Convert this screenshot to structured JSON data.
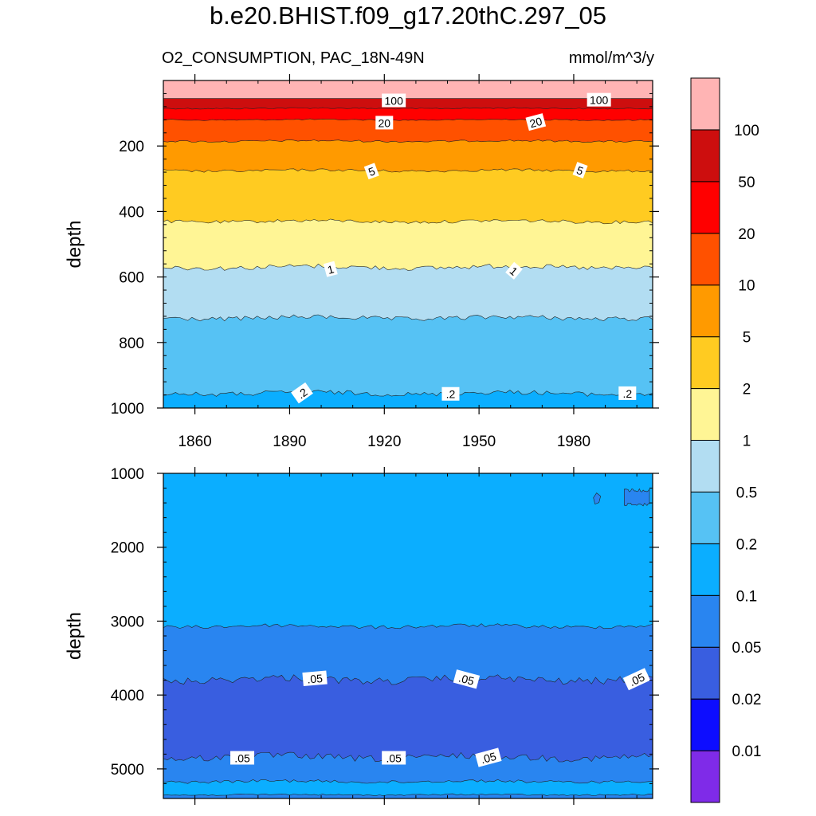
{
  "title": "b.e20.BHIST.f09_g17.20thC.297_05",
  "left_subtitle": "O2_CONSUMPTION, PAC_18N-49N",
  "right_subtitle": "mmol/m^3/y",
  "chart_data": {
    "type": "contour",
    "variable": "O2_CONSUMPTION",
    "region": "PAC_18N-49N",
    "units": "mmol/m^3/y",
    "x": {
      "label": "",
      "range": [
        1850,
        2005
      ],
      "ticks": [
        1860,
        1890,
        1920,
        1950,
        1980
      ],
      "minor_step": 10
    },
    "palette": [
      "#7F2BE8",
      "#0D0DFF",
      "#395EE0",
      "#2985F0",
      "#0BAEFF",
      "#56C2F4",
      "#B2DDF2",
      "#FFF595",
      "#FFCB21",
      "#FF9A00",
      "#FF5100",
      "#FF0000",
      "#CD0E0E",
      "#FFB4B4"
    ],
    "colorbar": {
      "levels": [
        "0.01",
        "0.02",
        "0.05",
        "0.1",
        "0.2",
        "0.5",
        "1",
        "2",
        "5",
        "10",
        "20",
        "50",
        "100"
      ]
    },
    "panels": [
      {
        "name": "upper",
        "ylabel": "depth",
        "ylim": [
          0,
          1000
        ],
        "yreversed": true,
        "y_ticks": [
          200,
          400,
          600,
          800,
          1000
        ],
        "y_minor_step": 40,
        "bands": [
          {
            "top": 0,
            "bottom": 55,
            "color_index": 13,
            "amp": 0
          },
          {
            "top": 55,
            "bottom": 85,
            "color_index": 12,
            "amp": 2
          },
          {
            "top": 85,
            "bottom": 120,
            "color_index": 11,
            "amp": 2
          },
          {
            "top": 120,
            "bottom": 185,
            "color_index": 10,
            "amp": 3
          },
          {
            "top": 185,
            "bottom": 275,
            "color_index": 9,
            "amp": 4
          },
          {
            "top": 275,
            "bottom": 430,
            "color_index": 8,
            "amp": 5
          },
          {
            "top": 430,
            "bottom": 570,
            "color_index": 7,
            "amp": 7
          },
          {
            "top": 570,
            "bottom": 725,
            "color_index": 6,
            "amp": 7
          },
          {
            "top": 725,
            "bottom": 955,
            "color_index": 5,
            "amp": 7
          },
          {
            "top": 955,
            "bottom": 1000,
            "color_index": 4,
            "amp": 0
          }
        ],
        "contour_labels": [
          {
            "text": "100",
            "year": 1923,
            "depth": 62,
            "rot": 0
          },
          {
            "text": "100",
            "year": 1988,
            "depth": 60,
            "rot": 0
          },
          {
            "text": "20",
            "year": 1920,
            "depth": 130,
            "rot": 0
          },
          {
            "text": "20",
            "year": 1968,
            "depth": 128,
            "rot": -15
          },
          {
            "text": "5",
            "year": 1916,
            "depth": 278,
            "rot": -20
          },
          {
            "text": "5",
            "year": 1982,
            "depth": 275,
            "rot": 20
          },
          {
            "text": "1",
            "year": 1903,
            "depth": 577,
            "rot": -15
          },
          {
            "text": "1",
            "year": 1961,
            "depth": 582,
            "rot": 40
          },
          {
            "text": ".2",
            "year": 1894,
            "depth": 955,
            "rot": -35
          },
          {
            "text": ".2",
            "year": 1941,
            "depth": 958,
            "rot": 0
          },
          {
            "text": ".2",
            "year": 1997,
            "depth": 956,
            "rot": 0
          }
        ]
      },
      {
        "name": "lower",
        "ylabel": "depth",
        "ylim": [
          1000,
          5400
        ],
        "yreversed": true,
        "y_ticks": [
          1000,
          2000,
          3000,
          4000,
          5000
        ],
        "y_minor_step": 200,
        "bands": [
          {
            "top": 1000,
            "bottom": 3070,
            "color_index": 4,
            "amp": 25
          },
          {
            "top": 3070,
            "bottom": 3790,
            "color_index": 3,
            "amp": 50
          },
          {
            "top": 3790,
            "bottom": 4840,
            "color_index": 2,
            "amp": 45
          },
          {
            "top": 4840,
            "bottom": 5170,
            "color_index": 3,
            "amp": 20
          },
          {
            "top": 5170,
            "bottom": 5350,
            "color_index": 4,
            "amp": 10
          },
          {
            "top": 5350,
            "bottom": 5400,
            "color_index": 3,
            "amp": 0
          }
        ],
        "patch": {
          "years": [
            1996,
            2004
          ],
          "depths": [
            1360,
            1400
          ],
          "color_index": 3
        },
        "contour_labels": [
          {
            "text": ".05",
            "year": 1898,
            "depth": 3780,
            "rot": -5
          },
          {
            "text": ".05",
            "year": 1946,
            "depth": 3790,
            "rot": 15
          },
          {
            "text": ".05",
            "year": 2000,
            "depth": 3790,
            "rot": -25
          },
          {
            "text": ".05",
            "year": 1875,
            "depth": 4855,
            "rot": 0
          },
          {
            "text": ".05",
            "year": 1923,
            "depth": 4855,
            "rot": 0
          },
          {
            "text": ".05",
            "year": 1953,
            "depth": 4850,
            "rot": -15
          }
        ]
      }
    ]
  }
}
